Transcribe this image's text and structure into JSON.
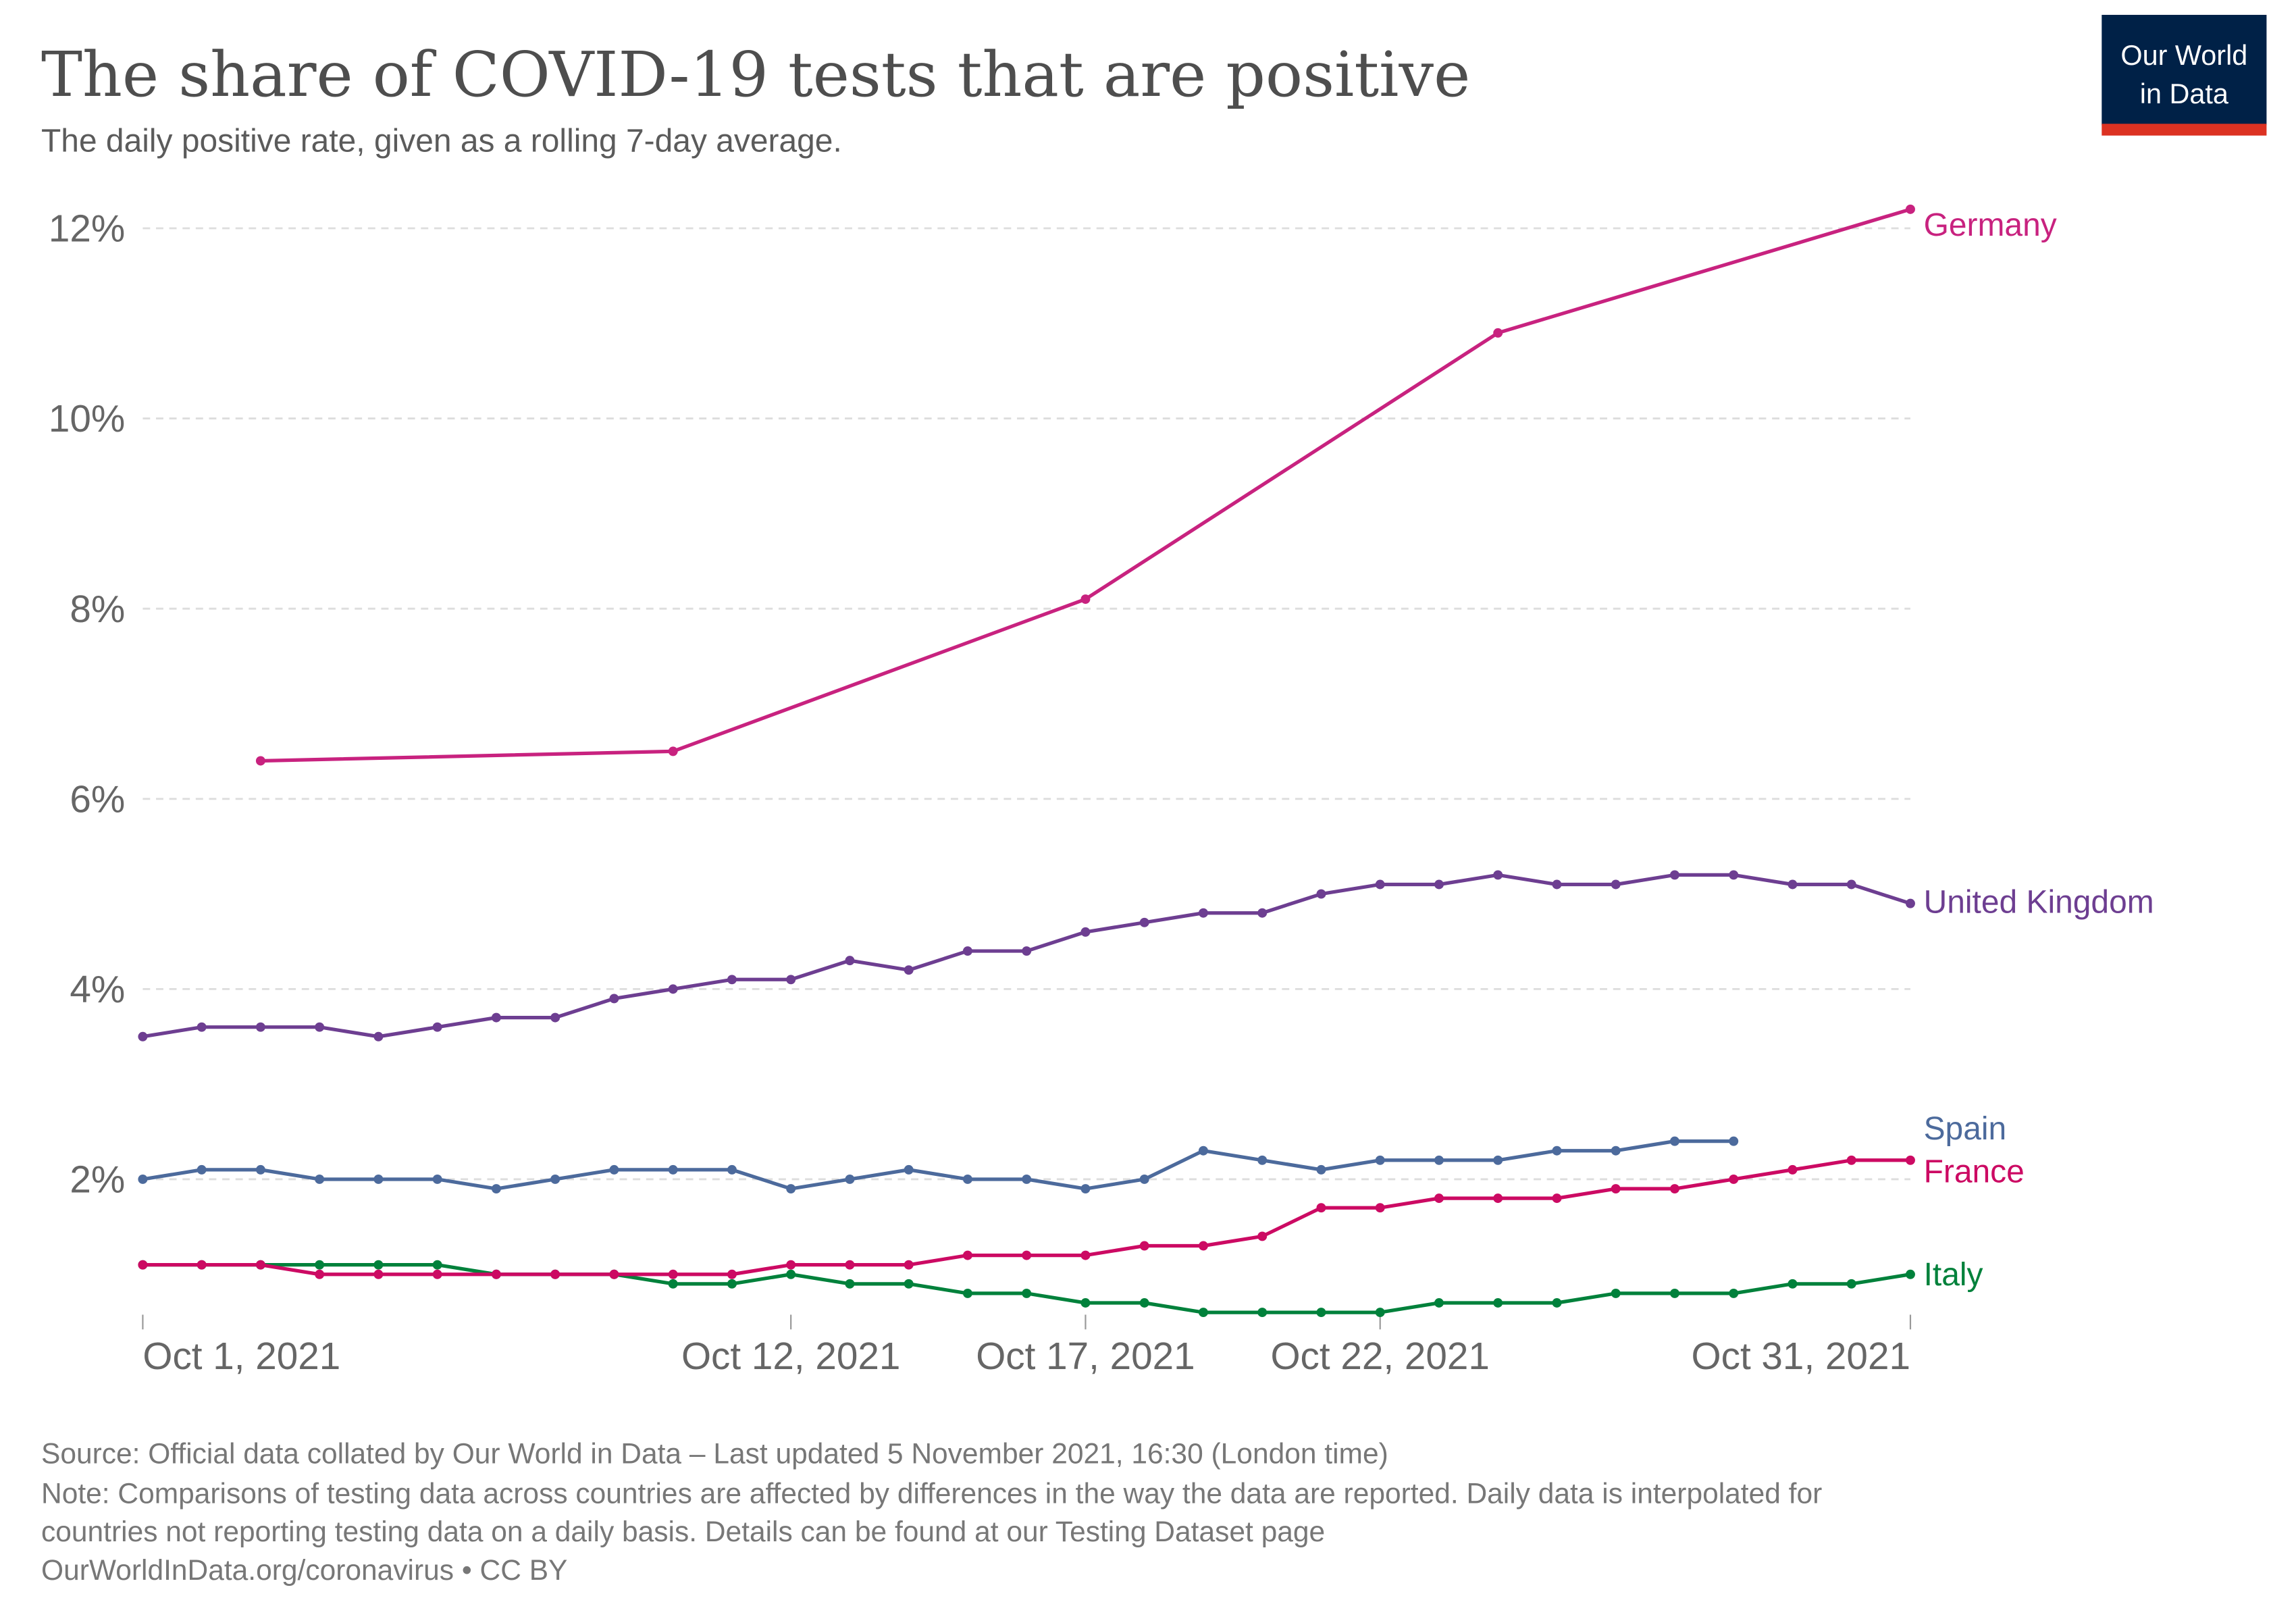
{
  "header": {
    "title": "The share of COVID-19 tests that are positive",
    "subtitle": "The daily positive rate, given as a rolling 7-day average.",
    "logo": {
      "line1": "Our World",
      "line2": "in Data",
      "bg": "#002147",
      "accent": "#dc3222"
    }
  },
  "footer": {
    "source": "Source: Official data collated by Our World in Data – Last updated 5 November 2021, 16:30 (London time)",
    "note1": "Note: Comparisons of testing data across countries are affected by differences in the way the data are reported. Daily data is interpolated for",
    "note2": "countries not reporting testing data on a daily basis. Details can be found at our Testing Dataset page",
    "license": "OurWorldInData.org/coronavirus • CC BY"
  },
  "chart_data": {
    "type": "line",
    "xlabel": "",
    "ylabel": "",
    "x_range": [
      "2021-10-01",
      "2021-10-31"
    ],
    "ylim": [
      0.5,
      12.2
    ],
    "grid": "horizontal dashed",
    "legend": "inline labels at line ends (right)",
    "y_ticks": [
      2,
      4,
      6,
      8,
      10,
      12
    ],
    "y_tick_labels": [
      "2%",
      "4%",
      "6%",
      "8%",
      "10%",
      "12%"
    ],
    "x_ticks": [
      "2021-10-01",
      "2021-10-12",
      "2021-10-17",
      "2021-10-22",
      "2021-10-31"
    ],
    "x_tick_labels": [
      "Oct 1, 2021",
      "Oct 12, 2021",
      "Oct 17, 2021",
      "Oct 22, 2021",
      "Oct 31, 2021"
    ],
    "series": [
      {
        "name": "Germany",
        "color": "#c8227f",
        "dates": [
          "2021-10-03",
          "2021-10-10",
          "2021-10-17",
          "2021-10-24",
          "2021-10-31"
        ],
        "values": [
          6.4,
          6.5,
          8.1,
          10.9,
          12.2
        ]
      },
      {
        "name": "United Kingdom",
        "color": "#6d3e91",
        "start": "2021-10-01",
        "values": [
          3.5,
          3.6,
          3.6,
          3.6,
          3.5,
          3.6,
          3.7,
          3.7,
          3.9,
          4.0,
          4.1,
          4.1,
          4.3,
          4.2,
          4.4,
          4.4,
          4.6,
          4.7,
          4.8,
          4.8,
          5.0,
          5.1,
          5.1,
          5.2,
          5.1,
          5.1,
          5.2,
          5.2,
          5.1,
          5.1,
          4.9
        ]
      },
      {
        "name": "Spain",
        "color": "#4c6a9c",
        "start": "2021-10-01",
        "values": [
          2.0,
          2.1,
          2.1,
          2.0,
          2.0,
          2.0,
          1.9,
          2.0,
          2.1,
          2.1,
          2.1,
          1.9,
          2.0,
          2.1,
          2.0,
          2.0,
          1.9,
          2.0,
          2.3,
          2.2,
          2.1,
          2.2,
          2.2,
          2.2,
          2.3,
          2.3,
          2.4,
          2.4
        ]
      },
      {
        "name": "France",
        "color": "#cc0a63",
        "start": "2021-10-01",
        "values": [
          1.1,
          1.1,
          1.1,
          1.0,
          1.0,
          1.0,
          1.0,
          1.0,
          1.0,
          1.0,
          1.0,
          1.1,
          1.1,
          1.1,
          1.2,
          1.2,
          1.2,
          1.3,
          1.3,
          1.4,
          1.7,
          1.7,
          1.8,
          1.8,
          1.8,
          1.9,
          1.9,
          2.0,
          2.1,
          2.2,
          2.2
        ]
      },
      {
        "name": "Italy",
        "color": "#00813b",
        "start": "2021-10-01",
        "values": [
          1.1,
          1.1,
          1.1,
          1.1,
          1.1,
          1.1,
          1.0,
          1.0,
          1.0,
          0.9,
          0.9,
          1.0,
          0.9,
          0.9,
          0.8,
          0.8,
          0.7,
          0.7,
          0.6,
          0.6,
          0.6,
          0.6,
          0.7,
          0.7,
          0.7,
          0.8,
          0.8,
          0.8,
          0.9,
          0.9,
          1.0
        ]
      }
    ]
  }
}
